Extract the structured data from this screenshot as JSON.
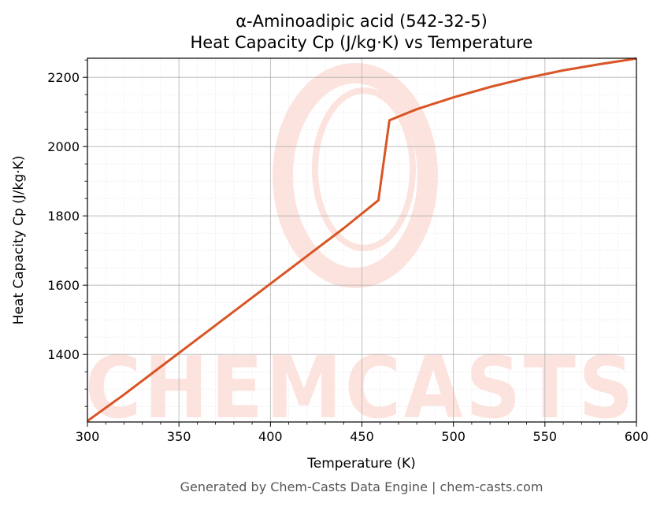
{
  "chart_data": {
    "type": "line",
    "title": "α-Aminoadipic acid (542-32-5)",
    "subtitle": "Heat Capacity Cp (J/kg·K) vs Temperature",
    "xlabel": "Temperature (K)",
    "ylabel": "Heat Capacity Cp (J/kg·K)",
    "xlim": [
      300,
      600
    ],
    "ylim": [
      1205,
      2255
    ],
    "xticks": [
      300,
      350,
      400,
      450,
      500,
      550,
      600
    ],
    "yticks": [
      1400,
      1600,
      1800,
      2000,
      2200
    ],
    "grid": true,
    "legend": "none",
    "series": [
      {
        "color": "#d95525",
        "x": [
          300,
          320,
          340,
          360,
          380,
          400,
          420,
          440,
          459,
          465,
          480,
          500,
          520,
          540,
          560,
          580,
          600
        ],
        "y": [
          1208,
          1284,
          1364,
          1444,
          1524,
          1604,
          1684,
          1764,
          1845,
          2076,
          2108,
          2142,
          2172,
          2198,
          2220,
          2238,
          2254
        ]
      }
    ]
  },
  "watermark": {
    "text": "CHEMCASTS",
    "color": "#fde3de"
  },
  "footer": {
    "text": "Generated by Chem-Casts Data Engine | chem-casts.com"
  }
}
